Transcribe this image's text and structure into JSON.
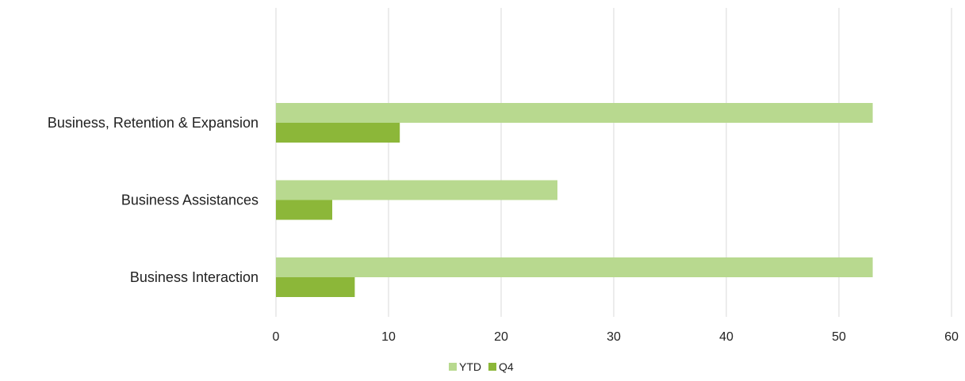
{
  "chart_data": {
    "type": "bar",
    "orientation": "horizontal",
    "categories": [
      "Business, Retention & Expansion",
      "Business Assistances",
      "Business Interaction"
    ],
    "series": [
      {
        "name": "YTD",
        "values": [
          53,
          25,
          53
        ],
        "color": "#b8d98f"
      },
      {
        "name": "Q4",
        "values": [
          11,
          5,
          7
        ],
        "color": "#8cb739"
      }
    ],
    "x_ticks": [
      "0",
      "10",
      "20",
      "30",
      "40",
      "50",
      "60"
    ],
    "xlim": [
      0,
      60
    ],
    "grid": true,
    "legend": "bottom-center",
    "title": "",
    "xlabel": "",
    "ylabel": ""
  }
}
